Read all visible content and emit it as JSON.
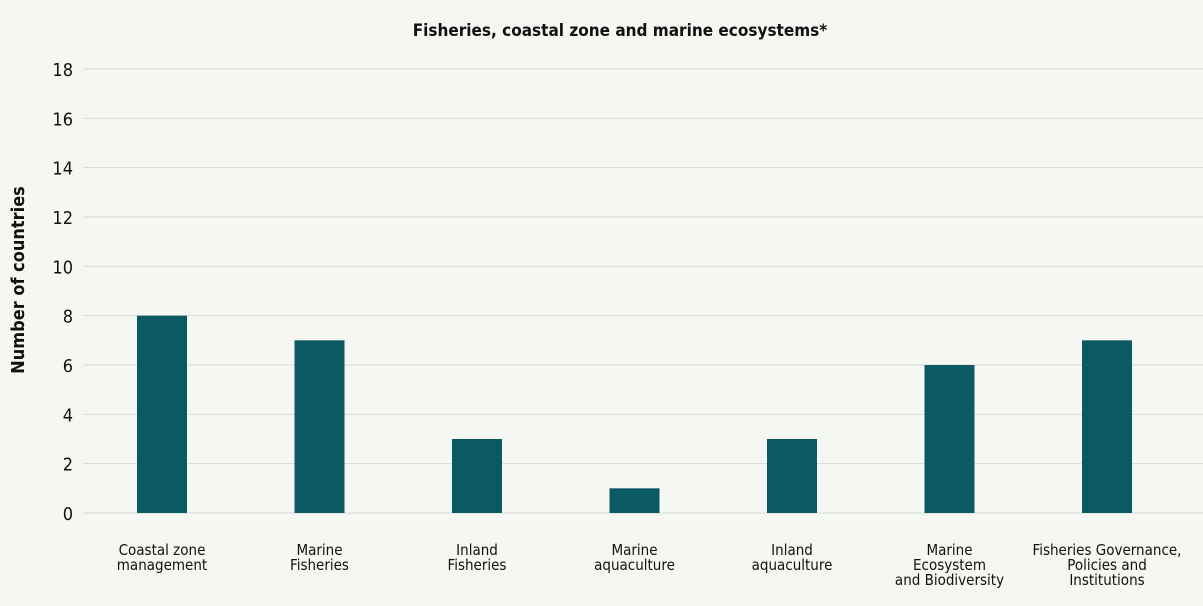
{
  "chart_data": {
    "type": "bar",
    "title": "Fisheries, coastal zone and marine ecosystems*",
    "xlabel": "",
    "ylabel": "Number of countries",
    "ylim": [
      0,
      18
    ],
    "yticks": [
      0,
      2,
      4,
      6,
      8,
      10,
      12,
      14,
      16,
      18
    ],
    "grid": true,
    "legend": "none",
    "categories": [
      [
        "Coastal zone",
        "management"
      ],
      [
        "Marine",
        "Fisheries"
      ],
      [
        "Inland",
        "Fisheries"
      ],
      [
        "Marine",
        "aquaculture"
      ],
      [
        "Inland",
        "aquaculture"
      ],
      [
        "Marine",
        "Ecosystem",
        "and Biodiversity"
      ],
      [
        "Fisheries Governance,",
        "Policies and",
        "Institutions"
      ]
    ],
    "values": [
      8,
      7,
      3,
      1,
      3,
      6,
      7
    ],
    "colors": {
      "bar": "#0b5962",
      "grid": "#d7dbd3",
      "background": "#f5f7f2"
    }
  }
}
